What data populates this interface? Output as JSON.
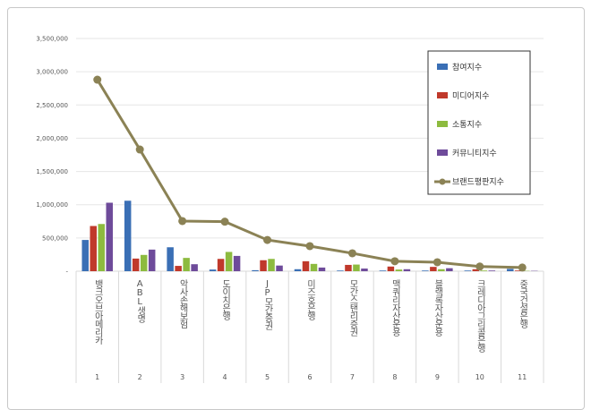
{
  "chart_data": {
    "type": "bar",
    "title": "",
    "xlabel": "",
    "ylabel": "",
    "ylim": [
      0,
      3500000
    ],
    "yticks": [
      "-",
      "500,000",
      "1,000,000",
      "1,500,000",
      "2,000,000",
      "2,500,000",
      "3,000,000",
      "3,500,000"
    ],
    "ytick_values": [
      0,
      500000,
      1000000,
      1500000,
      2000000,
      2500000,
      3000000,
      3500000
    ],
    "grid": true,
    "legend_position": "top-right",
    "categories": [
      "뱅크오브아메리카",
      "ABL생명",
      "악사손해보험",
      "도이치은행",
      "JP모간증권",
      "미즈호은행",
      "모간스탠리증권",
      "맥쿼리자산운용",
      "블랙록자산운용",
      "크레디아그리콜은행",
      "중국건설은행"
    ],
    "ranks": [
      "1",
      "2",
      "3",
      "4",
      "5",
      "6",
      "7",
      "8",
      "9",
      "10",
      "11"
    ],
    "series": [
      {
        "name": "참여지수",
        "type": "bar",
        "color": "#3a6fb5",
        "values": [
          470000,
          1060000,
          360000,
          25000,
          15000,
          30000,
          10000,
          10000,
          10000,
          10000,
          35000
        ]
      },
      {
        "name": "미디어지수",
        "type": "bar",
        "color": "#c0392b",
        "values": [
          680000,
          190000,
          80000,
          185000,
          165000,
          150000,
          95000,
          70000,
          65000,
          30000,
          10000
        ]
      },
      {
        "name": "소통지수",
        "type": "bar",
        "color": "#8dbb3f",
        "values": [
          710000,
          245000,
          200000,
          290000,
          185000,
          110000,
          100000,
          25000,
          30000,
          10000,
          5000
        ]
      },
      {
        "name": "커뮤니티지수",
        "type": "bar",
        "color": "#6e4b9a",
        "values": [
          1030000,
          325000,
          105000,
          230000,
          85000,
          55000,
          40000,
          30000,
          45000,
          10000,
          5000
        ]
      },
      {
        "name": "브랜드평판지수",
        "type": "line",
        "color": "#8b8255",
        "values": [
          2880000,
          1830000,
          754000,
          745000,
          470000,
          377000,
          270000,
          150000,
          135000,
          70000,
          55000
        ]
      }
    ]
  }
}
